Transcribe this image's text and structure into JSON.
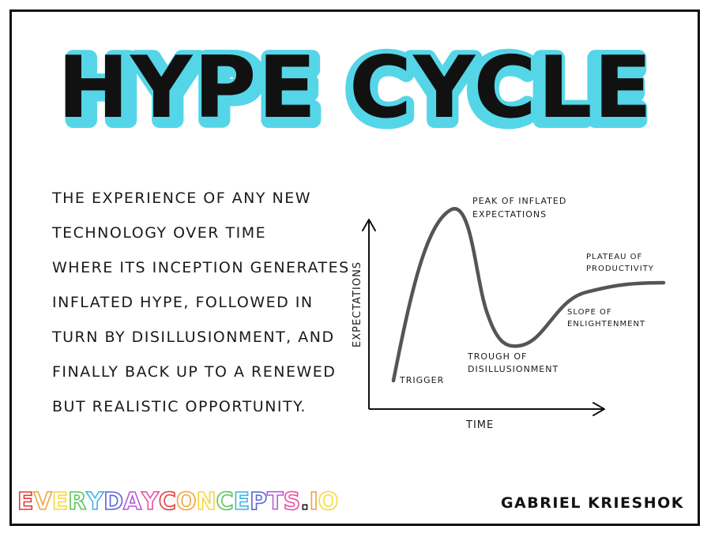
{
  "title": "HYPE CYCLE",
  "colors": {
    "title_highlight": "#55d6e8",
    "ink": "#111111",
    "curve": "#555555",
    "brand_colors": [
      "#e23b3b",
      "#f2a33a",
      "#f5d93b",
      "#5cc45c",
      "#3fb2e8",
      "#5a62d6",
      "#b65ad6",
      "#e84fa3"
    ]
  },
  "description_lines": [
    "THE EXPERIENCE OF ANY NEW",
    "TECHNOLOGY OVER TIME",
    "WHERE ITS INCEPTION GENERATES",
    "INFLATED HYPE, FOLLOWED IN",
    "TURN BY DISILLUSIONMENT, AND",
    "FINALLY BACK UP TO A RENEWED",
    "BUT REALISTIC OPPORTUNITY."
  ],
  "diagram": {
    "y_axis_label": "EXPECTATIONS",
    "x_axis_label": "TIME",
    "phases": {
      "trigger": "TRIGGER",
      "peak": [
        "PEAK OF INFLATED",
        "EXPECTATIONS"
      ],
      "trough": [
        "TROUGH OF",
        "DISILLUSIONMENT"
      ],
      "slope": [
        "SLOPE OF",
        "ENLIGHTENMENT"
      ],
      "plateau": [
        "PLATEAU OF",
        "PRODUCTIVITY"
      ]
    }
  },
  "footer": {
    "brand": "EVERYDAYCONCEPTS.IO",
    "author": "GABRIEL KRIESHOK"
  }
}
